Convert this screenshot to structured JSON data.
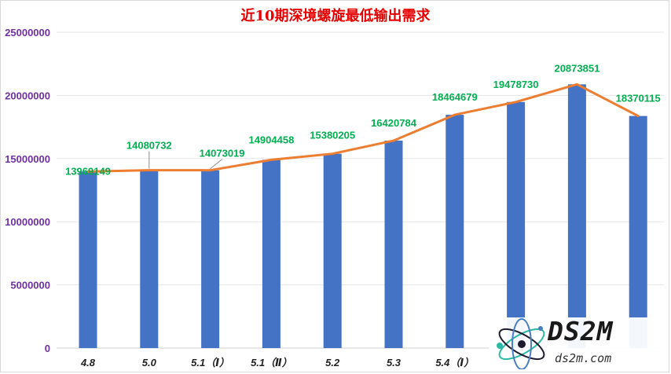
{
  "chart_data": {
    "type": "bar",
    "title": "近10期深境螺旋最低输出需求",
    "categories": [
      "4.8",
      "5.0",
      "5.1（Ⅰ）",
      "5.1（Ⅱ）",
      "5.2",
      "5.3",
      "5.4（Ⅰ）",
      "",
      "",
      ""
    ],
    "values": [
      13969149,
      14080732,
      14073019,
      14904458,
      15380205,
      16420784,
      18464679,
      19478730,
      20873851,
      18370115
    ],
    "data_labels": [
      "13969149",
      "14080732",
      "14073019",
      "14904458",
      "15380205",
      "16420784",
      "18464679",
      "19478730",
      "20873851",
      "18370115"
    ],
    "ylim": [
      0,
      25000000
    ],
    "yticks": [
      "0",
      "5000000",
      "10000000",
      "15000000",
      "20000000",
      "25000000"
    ],
    "grid": true,
    "overlay_line": true,
    "colors": {
      "bar": "#4472c4",
      "line": "#ed7d31",
      "label": "#00b050",
      "ytick": "#7030a0",
      "title": "#e60000"
    }
  },
  "watermark": {
    "logo": "DS2M",
    "url": "ds2m.com"
  }
}
